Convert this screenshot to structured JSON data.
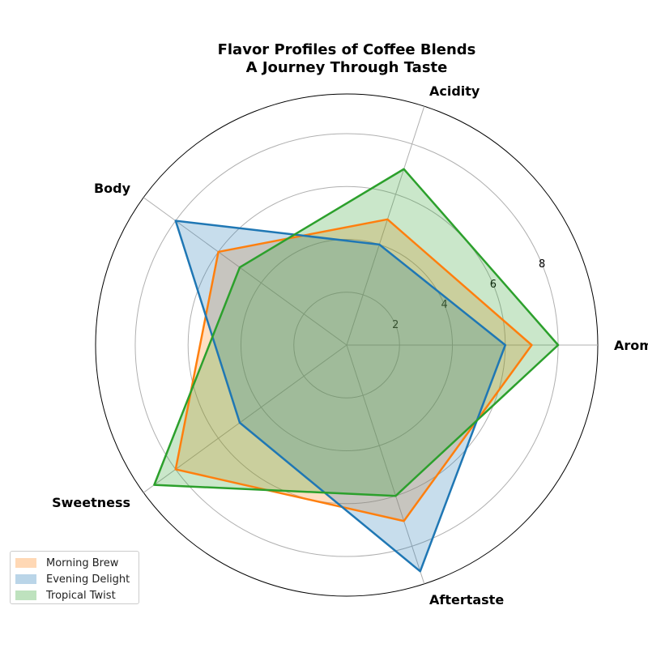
{
  "chart_data": {
    "type": "radar",
    "title": "Flavor Profiles of Coffee Blends",
    "subtitle": "A Journey Through Taste",
    "axes": [
      "Aroma",
      "Acidity",
      "Body",
      "Sweetness",
      "Aftertaste"
    ],
    "rmax": 9.5,
    "rticks": [
      2,
      4,
      6,
      8
    ],
    "grid": true,
    "legend_position": "bottom-left",
    "series": [
      {
        "name": "Morning Brew",
        "values": [
          7,
          5,
          6,
          8,
          7
        ],
        "color": "#ff7f0e"
      },
      {
        "name": "Evening Delight",
        "values": [
          6,
          4,
          8,
          5,
          9
        ],
        "color": "#1f77b4"
      },
      {
        "name": "Tropical Twist",
        "values": [
          8,
          7,
          5,
          9,
          6
        ],
        "color": "#2ca02c"
      }
    ]
  }
}
